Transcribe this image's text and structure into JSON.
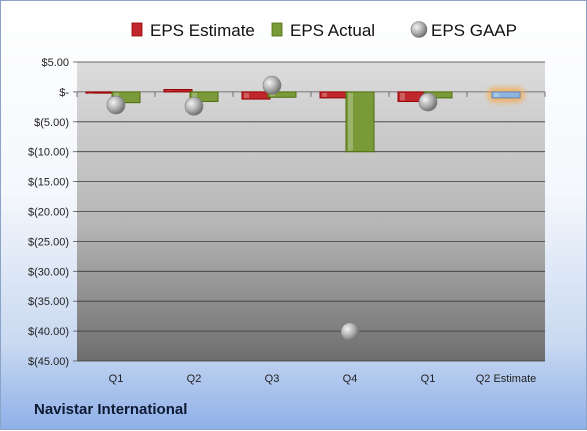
{
  "company": "Navistar International",
  "chart_data": {
    "type": "bar",
    "categories": [
      "Q1",
      "Q2",
      "Q3",
      "Q4",
      "Q1",
      "Q2 Estimate"
    ],
    "series": [
      {
        "name": "EPS Estimate",
        "color": "#c0282d",
        "values": [
          -0.2,
          0.4,
          -1.2,
          -1.0,
          -1.6,
          -1.0
        ]
      },
      {
        "name": "EPS Actual",
        "color": "#7a9a3a",
        "values": [
          -1.8,
          -1.6,
          -0.9,
          -10.0,
          -1.0,
          null
        ]
      },
      {
        "name": "EPS GAAP",
        "color": "#a8a8a8",
        "values": [
          -2.2,
          -2.4,
          1.1,
          -40.1,
          -1.7,
          null
        ]
      }
    ],
    "highlight": {
      "category": "Q2 Estimate",
      "series": "EPS Estimate",
      "color": "#8fb4e0",
      "glow": "#f7a84a"
    },
    "ylim": [
      -45,
      5
    ],
    "yticks": [
      5,
      0,
      -5,
      -10,
      -15,
      -20,
      -25,
      -30,
      -35,
      -40,
      -45
    ],
    "ytick_labels": [
      "$5.00",
      "$-",
      "$(5.00)",
      "$(10.00)",
      "$(15.00)",
      "$(20.00)",
      "$(25.00)",
      "$(30.00)",
      "$(35.00)",
      "$(40.00)",
      "$(45.00)"
    ],
    "legend_position": "top",
    "grid": true
  }
}
